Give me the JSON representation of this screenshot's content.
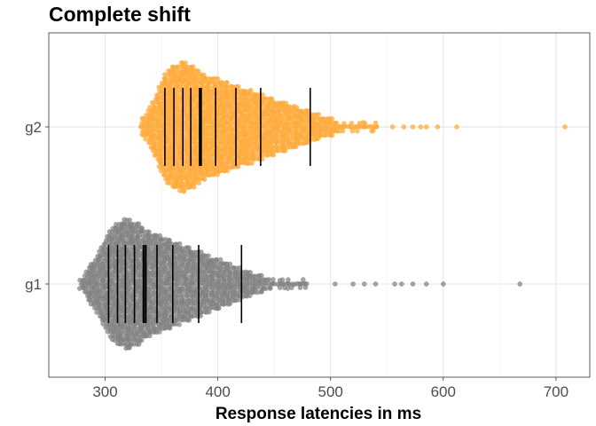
{
  "chart_data": {
    "type": "scatter",
    "subtype": "beeswarm with decile markers",
    "title": "Complete shift",
    "xlabel": "Response latencies in ms",
    "ylabel": "",
    "xlim": [
      250,
      730
    ],
    "x_ticks": [
      300,
      400,
      500,
      600,
      700
    ],
    "categories": [
      "g1",
      "g2"
    ],
    "grid": true,
    "legend": "none",
    "series": [
      {
        "name": "g1",
        "color": "#7f7f7f",
        "point_opacity": 0.7,
        "deciles": [
          303,
          311,
          318,
          326,
          334,
          336,
          346,
          360,
          383,
          421
        ],
        "range": [
          276,
          668
        ],
        "outliers": [
          504,
          520,
          530,
          540,
          557,
          563,
          573,
          585,
          600,
          668
        ]
      },
      {
        "name": "g2",
        "color": "#ffa93a",
        "point_opacity": 0.75,
        "deciles": [
          353,
          361,
          369,
          376,
          384,
          385,
          398,
          416,
          438,
          482
        ],
        "range": [
          329,
          708
        ],
        "outliers": [
          555,
          565,
          573,
          580,
          585,
          595,
          612,
          708
        ]
      }
    ]
  }
}
